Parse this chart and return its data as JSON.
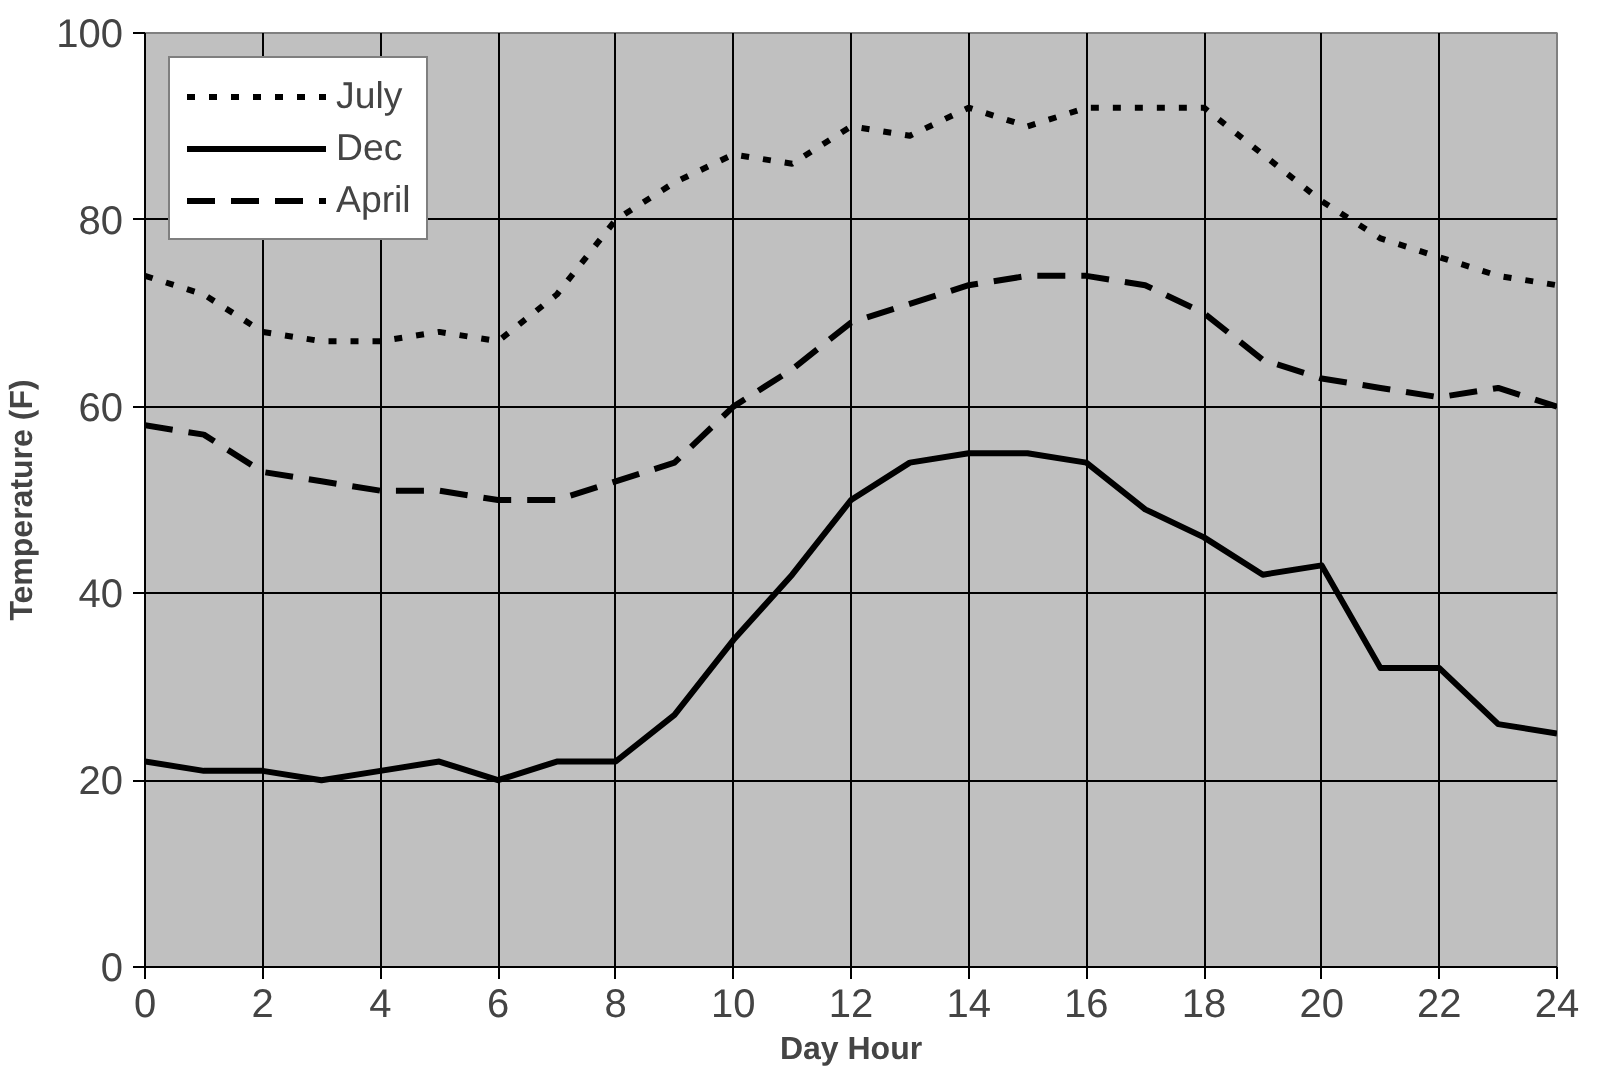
{
  "chart_data": {
    "type": "line",
    "xlabel": "Day Hour",
    "ylabel": "Temperature (F)",
    "x": [
      0,
      1,
      2,
      3,
      4,
      5,
      6,
      7,
      8,
      9,
      10,
      11,
      12,
      13,
      14,
      15,
      16,
      17,
      18,
      19,
      20,
      21,
      22,
      23,
      24
    ],
    "xlim": [
      0,
      24
    ],
    "xticks": [
      0,
      2,
      4,
      6,
      8,
      10,
      12,
      14,
      16,
      18,
      20,
      22,
      24
    ],
    "ylim": [
      0,
      100
    ],
    "yticks": [
      0,
      20,
      40,
      60,
      80,
      100
    ],
    "grid": true,
    "legend": "top left",
    "marker": "none",
    "series": [
      {
        "name": "July",
        "color": "#000000",
        "line_style": "dotted",
        "values": [
          74,
          72,
          68,
          67,
          67,
          68,
          67,
          72,
          80,
          84,
          87,
          86,
          90,
          89,
          92,
          90,
          92,
          92,
          92,
          87,
          82,
          78,
          76,
          74,
          73
        ]
      },
      {
        "name": "Dec",
        "color": "#000000",
        "line_style": "solid",
        "values": [
          22,
          21,
          21,
          20,
          21,
          22,
          20,
          22,
          22,
          27,
          35,
          42,
          50,
          54,
          55,
          55,
          54,
          49,
          46,
          42,
          43,
          32,
          32,
          26,
          25
        ]
      },
      {
        "name": "April",
        "color": "#000000",
        "line_style": "dashed",
        "values": [
          58,
          57,
          53,
          52,
          51,
          51,
          50,
          50,
          52,
          54,
          60,
          64,
          69,
          71,
          73,
          74,
          74,
          73,
          70,
          65,
          63,
          62,
          61,
          62,
          60
        ]
      }
    ]
  }
}
